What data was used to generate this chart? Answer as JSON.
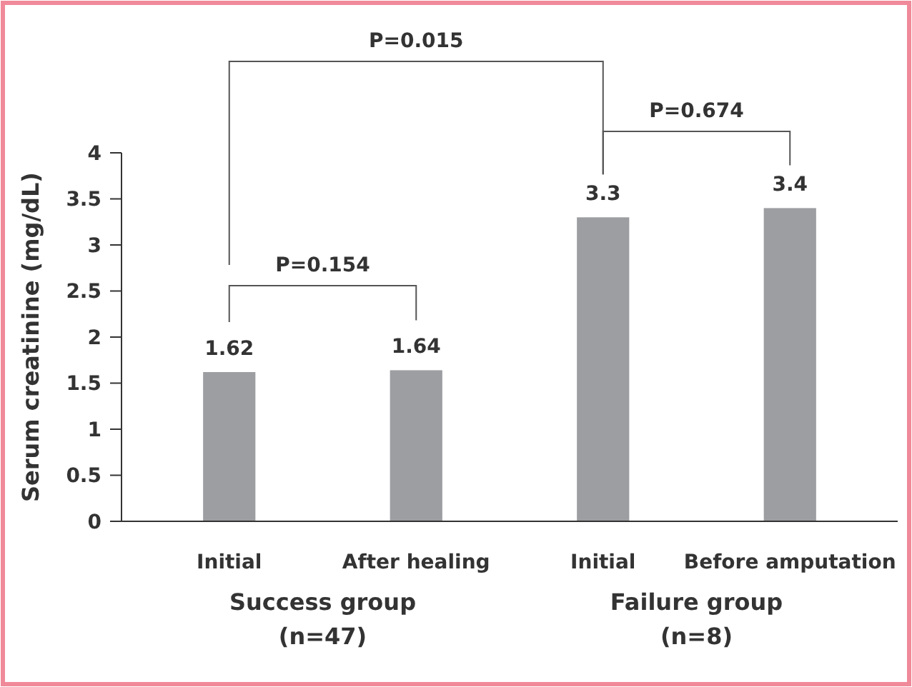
{
  "chart_data": {
    "type": "bar",
    "ylabel": "Serum creatinine (mg/dL)",
    "categories": [
      "Initial",
      "After healing",
      "Initial",
      "Before amputation"
    ],
    "values": [
      1.62,
      1.64,
      3.3,
      3.4
    ],
    "color": "#9d9ea2",
    "data_labels": true,
    "ylim": [
      0,
      4
    ],
    "yticks": [
      0,
      0.5,
      1,
      1.5,
      2,
      2.5,
      3,
      3.5,
      4
    ],
    "grid": false,
    "annotations": [
      "P=0.015",
      "P=0.674",
      "P=0.154",
      "Success group (n=47)",
      "Failure group (n=8)"
    ]
  }
}
